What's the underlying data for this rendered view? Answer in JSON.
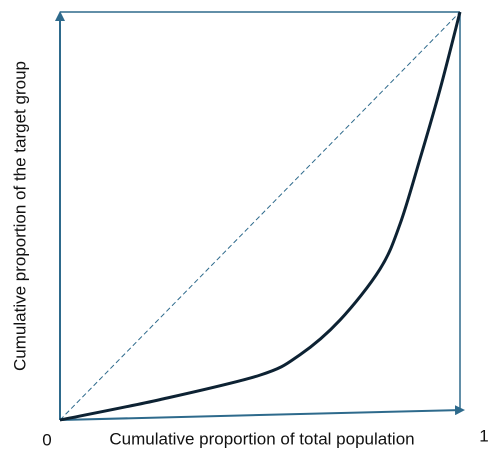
{
  "chart_data": {
    "type": "line",
    "xlabel": "Cumulative proportion of total population",
    "ylabel": "Cumulative proportion of the target group",
    "x": [
      0,
      0.25,
      0.5,
      0.6,
      0.7,
      0.8,
      0.85,
      0.9,
      0.95,
      1
    ],
    "values": [
      0,
      0.05,
      0.11,
      0.16,
      0.245,
      0.37,
      0.48,
      0.64,
      0.81,
      1
    ],
    "color": "#0d2233",
    "axis_color": "#2e6a8c",
    "xlim": [
      0,
      1
    ],
    "ylim": [
      0,
      1
    ],
    "xticks": [
      0,
      1
    ]
  }
}
